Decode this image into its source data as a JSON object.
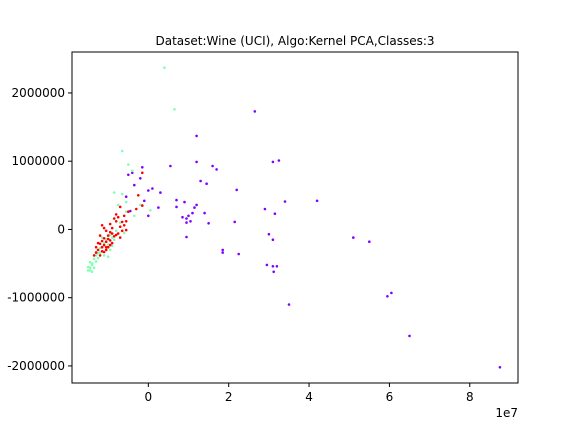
{
  "chart_data": {
    "type": "scatter",
    "title": "Dataset:Wine (UCI), Algo:Kernel PCA,Classes:3",
    "xlabel": "",
    "ylabel": "",
    "x_offset_label": "1e7",
    "xlim": [
      -1.9,
      9.2
    ],
    "ylim": [
      -2250000,
      2600000
    ],
    "xticks": [
      0,
      2,
      4,
      6,
      8
    ],
    "yticks": [
      -2000000,
      -1000000,
      0,
      1000000,
      2000000
    ],
    "grid": false,
    "legend": "none",
    "series": [
      {
        "color": "#8000ff",
        "points": [
          [
            8.75,
            -2020000
          ],
          [
            6.5,
            -1560000
          ],
          [
            6.05,
            -930000
          ],
          [
            5.95,
            -980000
          ],
          [
            5.5,
            -180000
          ],
          [
            5.1,
            -120000
          ],
          [
            4.2,
            420000
          ],
          [
            3.5,
            -1100000
          ],
          [
            3.4,
            410000
          ],
          [
            3.25,
            1010000
          ],
          [
            3.1,
            990000
          ],
          [
            3.15,
            230000
          ],
          [
            3.1,
            -150000
          ],
          [
            3.2,
            -540000
          ],
          [
            3.1,
            -540000
          ],
          [
            3.12,
            -620000
          ],
          [
            3.0,
            -70000
          ],
          [
            2.9,
            300000
          ],
          [
            2.95,
            -520000
          ],
          [
            2.65,
            1730000
          ],
          [
            2.2,
            580000
          ],
          [
            2.15,
            110000
          ],
          [
            2.25,
            -360000
          ],
          [
            1.85,
            -300000
          ],
          [
            1.85,
            -340000
          ],
          [
            1.7,
            880000
          ],
          [
            1.6,
            930000
          ],
          [
            1.45,
            670000
          ],
          [
            1.5,
            90000
          ],
          [
            1.4,
            240000
          ],
          [
            1.3,
            710000
          ],
          [
            1.2,
            990000
          ],
          [
            1.2,
            1370000
          ],
          [
            1.15,
            320000
          ],
          [
            1.2,
            360000
          ],
          [
            1.1,
            240000
          ],
          [
            1.05,
            120000
          ],
          [
            1.0,
            200000
          ],
          [
            0.95,
            160000
          ],
          [
            0.95,
            100000
          ],
          [
            0.9,
            400000
          ],
          [
            0.85,
            180000
          ],
          [
            0.95,
            -110000
          ],
          [
            0.7,
            330000
          ],
          [
            0.7,
            430000
          ],
          [
            0.55,
            930000
          ],
          [
            0.3,
            540000
          ],
          [
            0.25,
            320000
          ],
          [
            0.1,
            600000
          ],
          [
            -0.15,
            910000
          ],
          [
            -0.35,
            650000
          ],
          [
            -0.4,
            830000
          ],
          [
            -0.5,
            800000
          ],
          [
            -0.55,
            480000
          ],
          [
            -0.1,
            420000
          ],
          [
            0.0,
            570000
          ],
          [
            0.0,
            200000
          ],
          [
            -0.45,
            270000
          ],
          [
            -0.2,
            750000
          ]
        ]
      },
      {
        "color": "#80ffb4",
        "points": [
          [
            0.4,
            2370000
          ],
          [
            0.65,
            1760000
          ],
          [
            -0.65,
            1150000
          ],
          [
            -0.5,
            950000
          ],
          [
            -0.4,
            860000
          ],
          [
            -0.85,
            540000
          ],
          [
            -0.75,
            360000
          ],
          [
            -0.55,
            260000
          ],
          [
            -0.55,
            400000
          ],
          [
            -0.7,
            100000
          ],
          [
            -0.8,
            -20000
          ],
          [
            -0.6,
            -50000
          ],
          [
            -0.9,
            -240000
          ],
          [
            -0.95,
            -300000
          ],
          [
            -1.0,
            -400000
          ],
          [
            -1.05,
            -270000
          ],
          [
            -1.1,
            -200000
          ],
          [
            -1.15,
            -120000
          ],
          [
            -1.2,
            -340000
          ],
          [
            -1.25,
            -420000
          ],
          [
            -1.3,
            -380000
          ],
          [
            -1.3,
            -470000
          ],
          [
            -1.35,
            -560000
          ],
          [
            -1.4,
            -520000
          ],
          [
            -1.45,
            -600000
          ],
          [
            -1.5,
            -550000
          ],
          [
            -1.45,
            -480000
          ],
          [
            -1.35,
            -430000
          ],
          [
            -1.4,
            -620000
          ],
          [
            -1.5,
            -600000
          ],
          [
            -1.25,
            -300000
          ],
          [
            -1.2,
            -270000
          ],
          [
            -1.1,
            -380000
          ],
          [
            -1.0,
            -220000
          ],
          [
            -0.9,
            -120000
          ],
          [
            -0.85,
            -150000
          ],
          [
            -0.75,
            -60000
          ],
          [
            -0.95,
            -80000
          ],
          [
            -0.2,
            360000
          ],
          [
            0.05,
            280000
          ],
          [
            -0.65,
            520000
          ],
          [
            -1.3,
            -330000
          ],
          [
            -1.45,
            -560000
          ],
          [
            -1.4,
            -500000
          ],
          [
            -1.25,
            -350000
          ],
          [
            -0.35,
            200000
          ],
          [
            -1.15,
            -260000
          ],
          [
            -1.05,
            -140000
          ]
        ]
      },
      {
        "color": "#ff0000",
        "points": [
          [
            -0.15,
            830000
          ],
          [
            -0.25,
            500000
          ],
          [
            -0.3,
            300000
          ],
          [
            -0.15,
            350000
          ],
          [
            -0.5,
            260000
          ],
          [
            -0.6,
            200000
          ],
          [
            -0.55,
            120000
          ],
          [
            -0.6,
            60000
          ],
          [
            -0.7,
            40000
          ],
          [
            -0.65,
            -20000
          ],
          [
            -0.75,
            -60000
          ],
          [
            -0.8,
            120000
          ],
          [
            -0.8,
            220000
          ],
          [
            -0.7,
            330000
          ],
          [
            -0.85,
            -100000
          ],
          [
            -0.9,
            20000
          ],
          [
            -0.95,
            -40000
          ],
          [
            -0.95,
            -160000
          ],
          [
            -1.0,
            -90000
          ],
          [
            -1.05,
            -180000
          ],
          [
            -1.1,
            -230000
          ],
          [
            -1.1,
            -130000
          ],
          [
            -1.15,
            -260000
          ],
          [
            -1.15,
            -320000
          ],
          [
            -1.2,
            -210000
          ],
          [
            -1.2,
            -380000
          ],
          [
            -1.25,
            -300000
          ],
          [
            -1.3,
            -340000
          ],
          [
            -1.25,
            -200000
          ],
          [
            -1.15,
            -170000
          ],
          [
            -1.05,
            -300000
          ],
          [
            -1.0,
            -260000
          ],
          [
            -0.9,
            -200000
          ],
          [
            -0.8,
            -80000
          ],
          [
            -0.95,
            80000
          ],
          [
            -1.05,
            -20000
          ],
          [
            -1.15,
            60000
          ],
          [
            -1.1,
            20000
          ],
          [
            -1.0,
            -140000
          ],
          [
            -0.9,
            -60000
          ],
          [
            -0.85,
            160000
          ],
          [
            -0.75,
            180000
          ],
          [
            -0.95,
            -230000
          ],
          [
            -1.2,
            -90000
          ],
          [
            -1.3,
            -260000
          ],
          [
            -1.1,
            -330000
          ],
          [
            -1.05,
            -260000
          ],
          [
            -0.65,
            110000
          ],
          [
            -0.55,
            -10000
          ],
          [
            -0.7,
            -120000
          ],
          [
            -1.35,
            -380000
          ]
        ]
      }
    ]
  }
}
